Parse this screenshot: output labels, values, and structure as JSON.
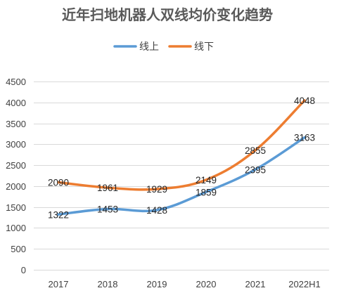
{
  "chart_data": {
    "type": "line",
    "title": "近年扫地机器人双线均价变化趋势",
    "categories": [
      "2017",
      "2018",
      "2019",
      "2020",
      "2021",
      "2022H1"
    ],
    "series": [
      {
        "name": "线上",
        "color": "#5b9bd5",
        "values": [
          1322,
          1453,
          1428,
          1859,
          2395,
          3163
        ]
      },
      {
        "name": "线下",
        "color": "#ed7d31",
        "values": [
          2090,
          1961,
          1929,
          2149,
          2855,
          4048
        ]
      }
    ],
    "ylim": [
      0,
      4500
    ],
    "yticks": [
      0,
      500,
      1000,
      1500,
      2000,
      2500,
      3000,
      3500,
      4000,
      4500
    ],
    "legend_position": "top",
    "grid": true
  }
}
